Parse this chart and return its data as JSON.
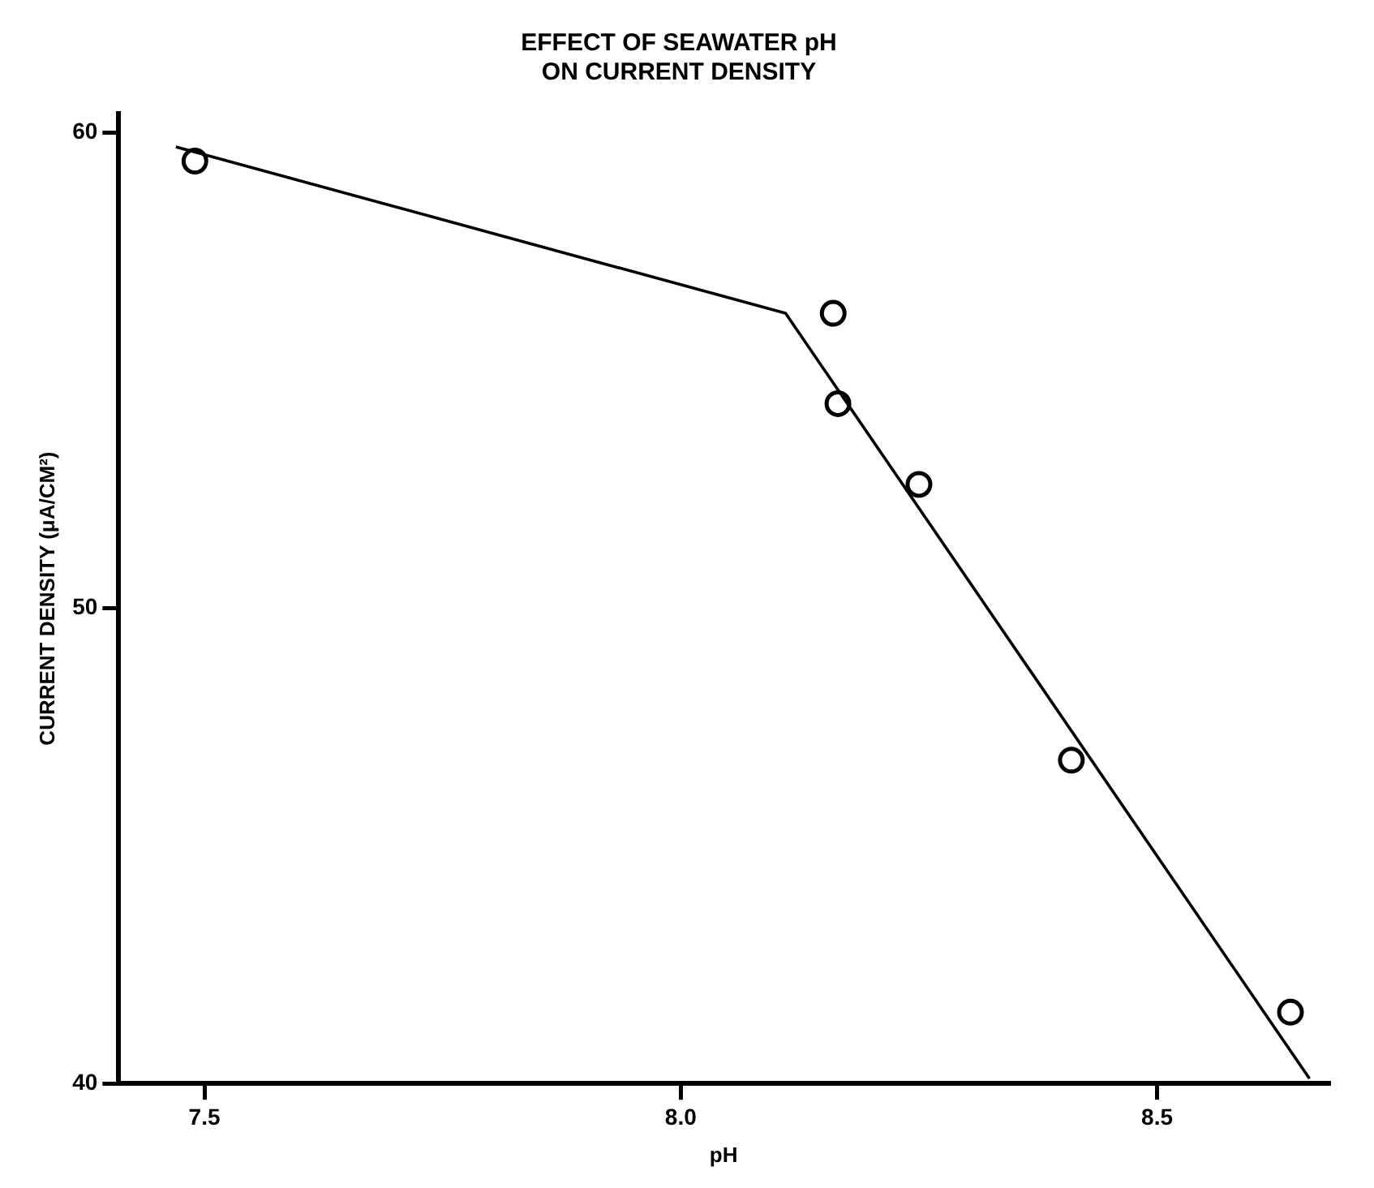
{
  "chart_data": {
    "type": "scatter",
    "title": "EFFECT OF SEAWATER pH\nON CURRENT DENSITY",
    "xlabel": "pH",
    "ylabel": "CURRENT DENSITY (μA/CM²)",
    "xlim": [
      7.41,
      8.68
    ],
    "xticks": [
      {
        "value": 7.5,
        "label": "7.5"
      },
      {
        "value": 8.0,
        "label": "8.0"
      },
      {
        "value": 8.5,
        "label": "8.5"
      }
    ],
    "ylim": [
      40,
      60.4
    ],
    "yticks": [
      40,
      50,
      60
    ],
    "grid": false,
    "legend": false,
    "series": [
      {
        "marker": "circle",
        "color": "#000000",
        "x": [
          7.49,
          8.16,
          8.165,
          8.25,
          8.41,
          8.64
        ],
        "values": [
          59.4,
          56.2,
          54.3,
          52.6,
          46.8,
          41.5
        ]
      },
      {
        "type": "line",
        "marker": "none",
        "color": "#000000",
        "line_style": "solid",
        "x": [
          7.47,
          8.11,
          8.66
        ],
        "values": [
          59.7,
          56.2,
          40.1
        ]
      }
    ]
  }
}
